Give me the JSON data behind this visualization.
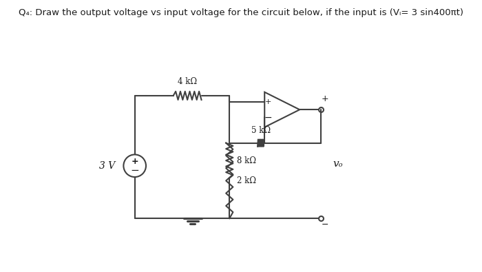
{
  "title": "Q₄: Draw the output voltage vs input voltage for the circuit below, if the input is (Vᵢ= 3 sin400πt)",
  "background_color": "#ffffff",
  "resistors": {
    "R1": "4 kΩ",
    "R2": "8 kΩ",
    "R3": "5 kΩ",
    "R4": "2 kΩ"
  },
  "source_label": "3 V",
  "output_label": "vₒ",
  "line_color": "#404040",
  "text_color": "#1a1a1a"
}
